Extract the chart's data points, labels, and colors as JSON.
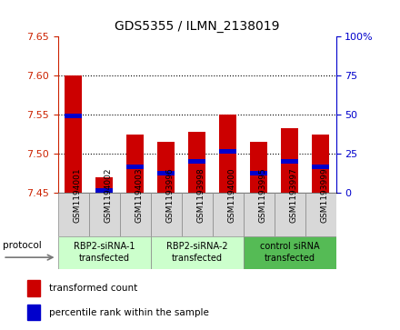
{
  "title": "GDS5355 / ILMN_2138019",
  "samples": [
    "GSM1194001",
    "GSM1194002",
    "GSM1194003",
    "GSM1193996",
    "GSM1193998",
    "GSM1194000",
    "GSM1193995",
    "GSM1193997",
    "GSM1193999"
  ],
  "red_values": [
    7.6,
    7.47,
    7.525,
    7.515,
    7.528,
    7.55,
    7.515,
    7.533,
    7.525
  ],
  "blue_values": [
    7.548,
    7.453,
    7.483,
    7.475,
    7.49,
    7.503,
    7.475,
    7.49,
    7.483
  ],
  "bar_base": 7.45,
  "ylim_left": [
    7.45,
    7.65
  ],
  "ylim_right": [
    0,
    100
  ],
  "yticks_left": [
    7.45,
    7.5,
    7.55,
    7.6,
    7.65
  ],
  "yticks_right": [
    0,
    25,
    50,
    75,
    100
  ],
  "ytick_labels_right": [
    "0",
    "25",
    "50",
    "75",
    "100%"
  ],
  "groups": [
    {
      "label": "RBP2-siRNA-1\ntransfected",
      "start": 0,
      "end": 3,
      "color": "#ccffcc"
    },
    {
      "label": "RBP2-siRNA-2\ntransfected",
      "start": 3,
      "end": 6,
      "color": "#ccffcc"
    },
    {
      "label": "control siRNA\ntransfected",
      "start": 6,
      "end": 9,
      "color": "#55bb55"
    }
  ],
  "protocol_label": "protocol",
  "red_color": "#cc0000",
  "blue_color": "#0000cc",
  "bar_width": 0.55,
  "bg_color": "#d8d8d8",
  "left_tick_color": "#cc2200",
  "right_tick_color": "#0000cc",
  "legend_red_label": "transformed count",
  "legend_blue_label": "percentile rank within the sample"
}
